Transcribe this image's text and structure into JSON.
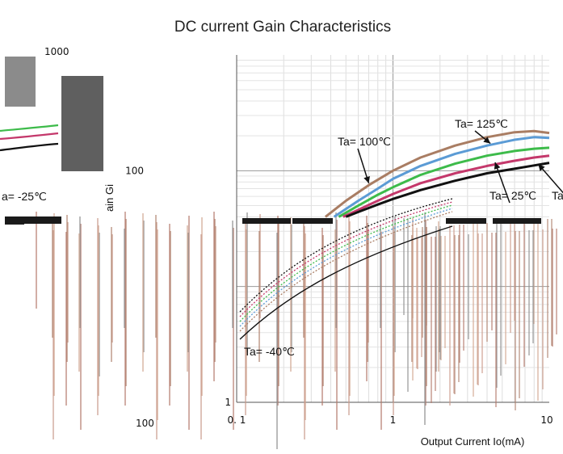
{
  "chart_data": {
    "type": "line",
    "title": "DC current Gain Characteristics",
    "xlabel": "Output Current   Io(mA)",
    "ylabel": "ain Gi",
    "xscale": "log",
    "yscale": "log",
    "xlim": [
      0.1,
      10
    ],
    "ylim": [
      1,
      1000
    ],
    "x_ticks": [
      "0. 1",
      "1",
      "10"
    ],
    "y_ticks": [
      "1",
      "100",
      "1000"
    ],
    "left_fragment_tick": "100",
    "grid": true,
    "series": [
      {
        "name": "Ta= 125℃",
        "color": "#a97d63",
        "x": [
          0.37,
          0.5,
          0.7,
          1.0,
          1.5,
          2.5,
          4,
          6,
          8,
          10
        ],
        "y": [
          40,
          55,
          75,
          100,
          130,
          165,
          195,
          215,
          220,
          212
        ]
      },
      {
        "name": "Ta= 100℃",
        "color": "#5b9bd5",
        "x": [
          0.42,
          0.6,
          0.8,
          1.0,
          1.5,
          2.5,
          4,
          6,
          8,
          10
        ],
        "y": [
          40,
          55,
          70,
          85,
          110,
          140,
          165,
          185,
          195,
          192
        ]
      },
      {
        "name": "",
        "color": "#3dbb4a",
        "x": [
          0.45,
          0.6,
          0.8,
          1.0,
          1.5,
          2.5,
          4,
          6,
          8,
          10
        ],
        "y": [
          40,
          50,
          62,
          72,
          92,
          115,
          135,
          148,
          155,
          158
        ]
      },
      {
        "name": "Ta= 25℃",
        "color": "#c4386b",
        "x": [
          0.48,
          0.6,
          0.8,
          1.0,
          1.5,
          2.5,
          4,
          6,
          8,
          10
        ],
        "y": [
          40,
          46,
          55,
          63,
          78,
          95,
          110,
          122,
          130,
          135
        ]
      },
      {
        "name": "Ta= -40℃",
        "color": "#111111",
        "x": [
          0.5,
          0.6,
          0.8,
          1.0,
          1.5,
          2.5,
          4,
          6,
          8,
          10
        ],
        "y": [
          40,
          44,
          51,
          57,
          68,
          82,
          95,
          104,
          111,
          117
        ]
      }
    ],
    "annotations": [
      {
        "text": "Ta= 125℃",
        "series": 0
      },
      {
        "text": "Ta= 100℃",
        "series": 1
      },
      {
        "text": "Ta= 25℃",
        "series": 3
      },
      {
        "text": "Ta= -40℃",
        "series": 4
      },
      {
        "text": "Ta",
        "series": 4
      },
      {
        "text": "a= -25℃",
        "series": 3
      }
    ]
  }
}
